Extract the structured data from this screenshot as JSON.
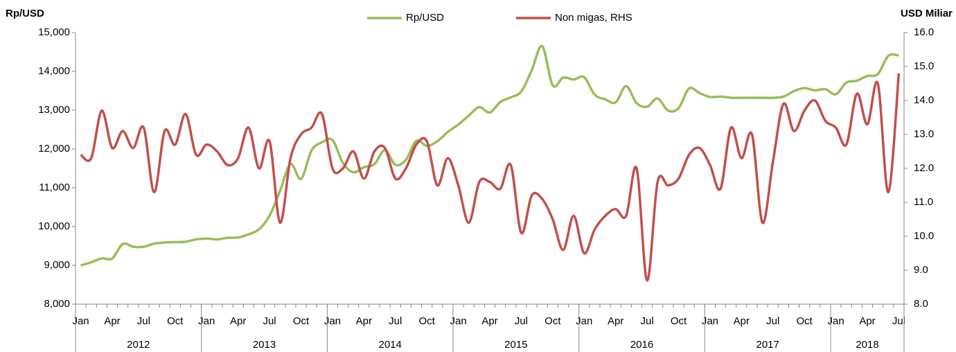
{
  "chart_data": {
    "type": "line",
    "y_label": "Rp/USD",
    "y2_label": "USD Miliar",
    "legend": "top",
    "categories": [
      "Jan",
      null,
      null,
      "Apr",
      null,
      null,
      "Jul",
      null,
      null,
      "Oct",
      null,
      null,
      "Jan",
      null,
      null,
      "Apr",
      null,
      null,
      "Jul",
      null,
      null,
      "Oct",
      null,
      null,
      "Jan",
      null,
      null,
      "Apr",
      null,
      null,
      "Jul",
      null,
      null,
      "Oct",
      null,
      null,
      "Jan",
      null,
      null,
      "Apr",
      null,
      null,
      "Jul",
      null,
      null,
      "Oct",
      null,
      null,
      "Jan",
      null,
      null,
      "Apr",
      null,
      null,
      "Jul",
      null,
      null,
      "Oct",
      null,
      null,
      "Jan",
      null,
      null,
      "Apr",
      null,
      null,
      "Jul",
      null,
      null,
      "Oct",
      null,
      null,
      "Jan",
      null,
      null,
      "Apr",
      null,
      null,
      "Jul"
    ],
    "years": [
      "2012",
      "2013",
      "2014",
      "2015",
      "2016",
      "2017",
      "2018"
    ],
    "series": [
      {
        "name": "Rp/USD",
        "color": "#9bbb59",
        "axis": "y",
        "values": [
          9000,
          9080,
          9180,
          9180,
          9550,
          9480,
          9480,
          9560,
          9590,
          9600,
          9610,
          9670,
          9690,
          9670,
          9710,
          9720,
          9800,
          9930,
          10280,
          10920,
          11610,
          11230,
          11960,
          12170,
          12230,
          11640,
          11400,
          11530,
          11610,
          11970,
          11590,
          11720,
          12210,
          12080,
          12200,
          12440,
          12630,
          12860,
          13080,
          12940,
          13210,
          13330,
          13480,
          14030,
          14650,
          13640,
          13840,
          13790,
          13850,
          13400,
          13280,
          13200,
          13620,
          13180,
          13090,
          13300,
          12990,
          13050,
          13560,
          13440,
          13340,
          13350,
          13320,
          13320,
          13320,
          13320,
          13320,
          13350,
          13490,
          13570,
          13510,
          13540,
          13410,
          13710,
          13760,
          13880,
          13930,
          14400,
          14410
        ]
      },
      {
        "name": "Non migas, RHS",
        "color": "#c0504d",
        "axis": "y2",
        "values": [
          12.4,
          12.3,
          13.7,
          12.6,
          13.1,
          12.6,
          13.2,
          11.3,
          13.1,
          12.7,
          13.6,
          12.4,
          12.7,
          12.5,
          12.1,
          12.3,
          13.2,
          12.0,
          12.8,
          10.4,
          12.3,
          13.0,
          13.2,
          13.6,
          12.0,
          12.0,
          12.5,
          11.7,
          12.5,
          12.6,
          11.7,
          12.0,
          12.7,
          12.8,
          11.5,
          12.3,
          11.5,
          10.4,
          11.6,
          11.6,
          11.4,
          12.1,
          10.1,
          11.2,
          11.1,
          10.5,
          9.6,
          10.6,
          9.5,
          10.2,
          10.6,
          10.8,
          10.6,
          12.0,
          8.7,
          11.6,
          11.5,
          11.7,
          12.4,
          12.6,
          12.1,
          11.4,
          13.2,
          12.3,
          13.0,
          10.4,
          12.2,
          13.9,
          13.1,
          13.7,
          14.0,
          13.4,
          13.2,
          12.7,
          14.2,
          13.3,
          14.5,
          11.3,
          14.8
        ]
      }
    ],
    "ylim": [
      8000,
      15000
    ],
    "yticks": [
      {
        "value": 8000,
        "label": "8,000"
      },
      {
        "value": 9000,
        "label": "9,000"
      },
      {
        "value": 10000,
        "label": "10,000"
      },
      {
        "value": 11000,
        "label": "11,000"
      },
      {
        "value": 12000,
        "label": "12,000"
      },
      {
        "value": 13000,
        "label": "13,000"
      },
      {
        "value": 14000,
        "label": "14,000"
      },
      {
        "value": 15000,
        "label": "15,000"
      }
    ],
    "y2lim": [
      8,
      16
    ],
    "y2ticks": [
      {
        "value": 8,
        "label": "8.0"
      },
      {
        "value": 9,
        "label": "9.0"
      },
      {
        "value": 10,
        "label": "10.0"
      },
      {
        "value": 11,
        "label": "11.0"
      },
      {
        "value": 12,
        "label": "12.0"
      },
      {
        "value": 13,
        "label": "13.0"
      },
      {
        "value": 14,
        "label": "14.0"
      },
      {
        "value": 15,
        "label": "15.0"
      },
      {
        "value": 16,
        "label": "16.0"
      }
    ]
  }
}
